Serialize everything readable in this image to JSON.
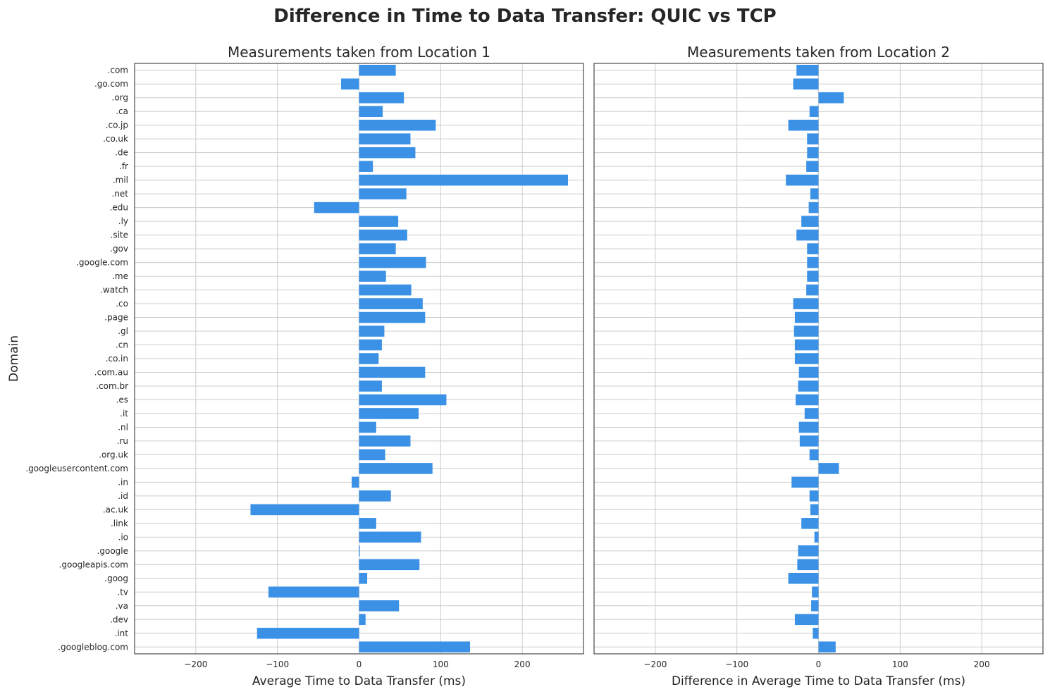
{
  "title": "Difference in Time to Data Transfer: QUIC vs TCP",
  "colors": {
    "bar": "#3a91e6",
    "grid": "#cccccc",
    "frame": "#262626",
    "text": "#262626"
  },
  "chart_data": [
    {
      "type": "bar",
      "orientation": "horizontal",
      "title": "Measurements taken from Location 1",
      "xlabel": "Average Time to Data Transfer (ms)",
      "ylabel": "Domain",
      "xlim": [
        -275,
        275
      ],
      "xticks": [
        -200,
        -100,
        0,
        100,
        200
      ],
      "grid": true,
      "categories": [
        ".com",
        ".go.com",
        ".org",
        ".ca",
        ".co.jp",
        ".co.uk",
        ".de",
        ".fr",
        ".mil",
        ".net",
        ".edu",
        ".ly",
        ".site",
        ".gov",
        ".google.com",
        ".me",
        ".watch",
        ".co",
        ".page",
        ".gl",
        ".cn",
        ".co.in",
        ".com.au",
        ".com.br",
        ".es",
        ".it",
        ".nl",
        ".ru",
        ".org.uk",
        ".googleusercontent.com",
        ".in",
        ".id",
        ".ac.uk",
        ".link",
        ".io",
        ".google",
        ".googleapis.com",
        ".goog",
        ".tv",
        ".va",
        ".dev",
        ".int",
        ".googleblog.com"
      ],
      "values": [
        45,
        -22,
        55,
        29,
        94,
        63,
        69,
        17,
        256,
        58,
        -55,
        48,
        59,
        45,
        82,
        33,
        64,
        78,
        81,
        31,
        28,
        24,
        81,
        28,
        107,
        73,
        21,
        63,
        32,
        90,
        -9,
        39,
        -133,
        21,
        76,
        1,
        74,
        10,
        -111,
        49,
        8,
        -125,
        136
      ]
    },
    {
      "type": "bar",
      "orientation": "horizontal",
      "title": "Measurements taken from Location 2",
      "xlabel": "Difference in Average Time to Data Transfer (ms)",
      "ylabel": "",
      "xlim": [
        -275,
        275
      ],
      "xticks": [
        -200,
        -100,
        0,
        100,
        200
      ],
      "grid": true,
      "categories": [
        ".com",
        ".go.com",
        ".org",
        ".ca",
        ".co.jp",
        ".co.uk",
        ".de",
        ".fr",
        ".mil",
        ".net",
        ".edu",
        ".ly",
        ".site",
        ".gov",
        ".google.com",
        ".me",
        ".watch",
        ".co",
        ".page",
        ".gl",
        ".cn",
        ".co.in",
        ".com.au",
        ".com.br",
        ".es",
        ".it",
        ".nl",
        ".ru",
        ".org.uk",
        ".googleusercontent.com",
        ".in",
        ".id",
        ".ac.uk",
        ".link",
        ".io",
        ".google",
        ".googleapis.com",
        ".goog",
        ".tv",
        ".va",
        ".dev",
        ".int",
        ".googleblog.com"
      ],
      "values": [
        -27,
        -31,
        31,
        -11,
        -37,
        -14,
        -14,
        -15,
        -40,
        -10,
        -12,
        -21,
        -27,
        -14,
        -14,
        -14,
        -15,
        -31,
        -29,
        -30,
        -29,
        -29,
        -24,
        -25,
        -28,
        -17,
        -24,
        -23,
        -11,
        25,
        -33,
        -11,
        -10,
        -21,
        -5,
        -25,
        -26,
        -37,
        -8,
        -9,
        -29,
        -7,
        21
      ]
    }
  ]
}
